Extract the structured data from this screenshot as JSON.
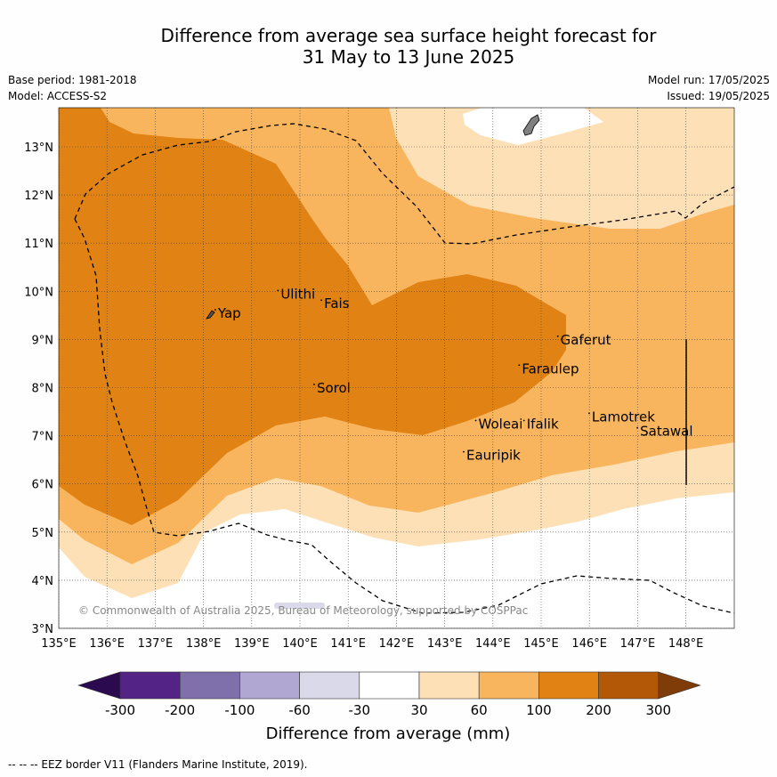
{
  "title_line1": "Difference from average sea surface height forecast for",
  "title_line2": "31 May to 13 June 2025",
  "base_period": "Base period: 1981-2018",
  "model": "Model: ACCESS-S2",
  "model_run": "Model run: 17/05/2025",
  "issued": "Issued: 19/05/2025",
  "copyright": "© Commonwealth of Australia 2025, Bureau of Meteorology, supported by COSPPac",
  "footnote": "--  --  -- EEZ border V11 (Flanders Marine Institute, 2019).",
  "colorbar": {
    "label": "Difference from average (mm)",
    "ticks": [
      "-300",
      "-200",
      "-100",
      "-60",
      "-30",
      "30",
      "60",
      "100",
      "200",
      "300"
    ],
    "colors": [
      "#2b0a4f",
      "#542386",
      "#7f70ac",
      "#b0a8d2",
      "#d9d9ea",
      "#ffffff",
      "#fee0b6",
      "#f9b55d",
      "#e08214",
      "#b35806",
      "#7f3b08"
    ]
  },
  "axes": {
    "lon_labels": [
      "135°E",
      "136°E",
      "137°E",
      "138°E",
      "139°E",
      "140°E",
      "141°E",
      "142°E",
      "143°E",
      "144°E",
      "145°E",
      "146°E",
      "147°E",
      "148°E"
    ],
    "lat_labels": [
      "3°N",
      "4°N",
      "5°N",
      "6°N",
      "7°N",
      "8°N",
      "9°N",
      "10°N",
      "11°N",
      "12°N",
      "13°N"
    ]
  },
  "places": [
    {
      "name": "Yap",
      "lon": 138.3,
      "lat": 9.45
    },
    {
      "name": "Ulithi",
      "lon": 139.6,
      "lat": 9.85
    },
    {
      "name": "Fais",
      "lon": 140.5,
      "lat": 9.65
    },
    {
      "name": "Sorol",
      "lon": 140.35,
      "lat": 7.9
    },
    {
      "name": "Gaferut",
      "lon": 145.4,
      "lat": 8.9
    },
    {
      "name": "Faraulep",
      "lon": 144.6,
      "lat": 8.3
    },
    {
      "name": "Woleai",
      "lon": 143.7,
      "lat": 7.15
    },
    {
      "name": "Ifalik",
      "lon": 144.7,
      "lat": 7.15
    },
    {
      "name": "Lamotrek",
      "lon": 146.05,
      "lat": 7.3
    },
    {
      "name": "Satawal",
      "lon": 147.05,
      "lat": 7.0
    },
    {
      "name": "Eauripik",
      "lon": 143.45,
      "lat": 6.5
    }
  ],
  "legend_icons": [
    "dashed-line-icon"
  ]
}
